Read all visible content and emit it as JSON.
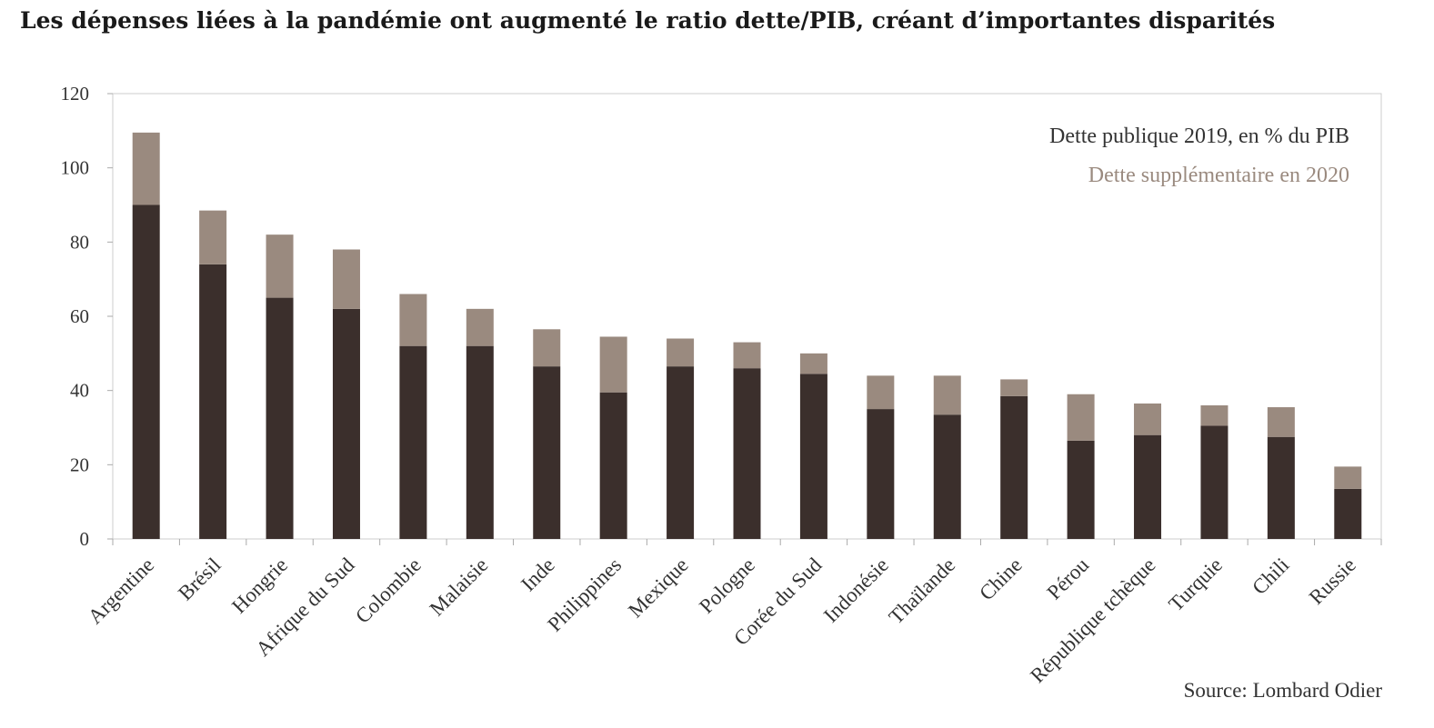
{
  "title": "Les dépenses liées à la pandémie ont augmenté le ratio dette/PIB, créant d’importantes disparités",
  "source": "Source: Lombard Odier",
  "colors": {
    "base": "#3b2f2c",
    "extra": "#9a8a7f",
    "axis": "#bbbbbb",
    "text": "#333333"
  },
  "chart_data": {
    "type": "bar",
    "stacked": true,
    "categories": [
      "Argentine",
      "Brésil",
      "Hongrie",
      "Afrique du Sud",
      "Colombie",
      "Malaisie",
      "Inde",
      "Philippines",
      "Mexique",
      "Pologne",
      "Corée du Sud",
      "Indonésie",
      "Thaïlande",
      "Chine",
      "Pérou",
      "République tchèque",
      "Turquie",
      "Chili",
      "Russie"
    ],
    "series": [
      {
        "name": "Dette publique 2019, en % du PIB",
        "values": [
          90,
          74,
          65,
          62,
          52,
          52,
          46.5,
          39.5,
          46.5,
          46,
          44.5,
          35,
          33.5,
          38.5,
          26.5,
          28,
          30.5,
          27.5,
          13.5
        ]
      },
      {
        "name": "Dette supplémentaire en 2020",
        "values": [
          19.5,
          14.5,
          17,
          16,
          14,
          10,
          10,
          15,
          7.5,
          7,
          5.5,
          9,
          10.5,
          4.5,
          12.5,
          8.5,
          5.5,
          8,
          6
        ]
      }
    ],
    "ylim": [
      0,
      120
    ],
    "yticks": [
      0,
      20,
      40,
      60,
      80,
      100,
      120
    ],
    "xlabel": "",
    "ylabel": "",
    "grid": false,
    "legend_position": "top-right"
  }
}
